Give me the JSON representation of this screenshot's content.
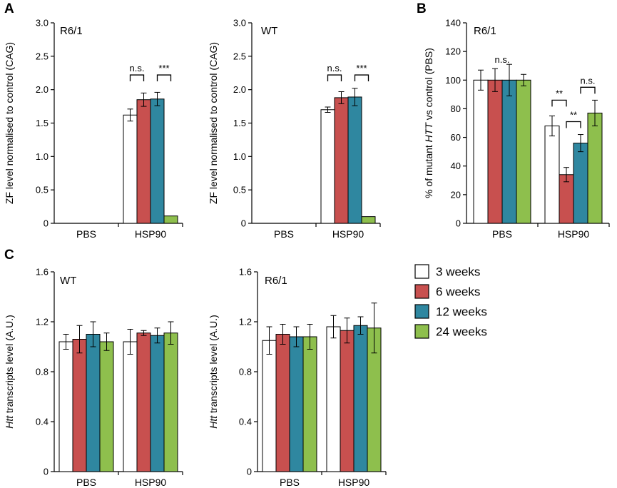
{
  "colors": {
    "3 weeks": "#ffffff",
    "6 weeks": "#c8504f",
    "12 weeks": "#2f87a0",
    "24 weeks": "#8ebf4d",
    "axis": "#000000"
  },
  "legend": {
    "entries": [
      "3 weeks",
      "6 weeks",
      "12 weeks",
      "24 weeks"
    ]
  },
  "chart_data": [
    {
      "id": "A1",
      "panel_label": "A",
      "type": "bar",
      "title": "R6/1",
      "ylabel": "ZF level normalised to control (CAG)",
      "ylim": [
        0,
        3.0
      ],
      "yticks": [
        "0",
        "0.5",
        "1.0",
        "1.5",
        "2.0",
        "2.5",
        "3.0"
      ],
      "categories": [
        "PBS",
        "HSP90"
      ],
      "series": [
        {
          "name": "3 weeks",
          "values": [
            0,
            1.62
          ],
          "errors": [
            0,
            0.09
          ]
        },
        {
          "name": "6 weeks",
          "values": [
            0,
            1.85
          ],
          "errors": [
            0,
            0.1
          ]
        },
        {
          "name": "12 weeks",
          "values": [
            0,
            1.86
          ],
          "errors": [
            0,
            0.1
          ]
        },
        {
          "name": "24 weeks",
          "values": [
            0,
            0.11
          ],
          "errors": [
            0,
            0
          ]
        }
      ],
      "annotations": [
        {
          "text": "n.s.",
          "cat": 1,
          "from": 0,
          "to": 1,
          "y": 2.22
        },
        {
          "text": "***",
          "cat": 1,
          "from": 2,
          "to": 3,
          "y": 2.22
        }
      ]
    },
    {
      "id": "A2",
      "type": "bar",
      "title": "WT",
      "ylabel": "ZF level normalised to control (CAG)",
      "ylim": [
        0,
        3.0
      ],
      "yticks": [
        "0",
        "0.5",
        "1.0",
        "1.5",
        "2.0",
        "2.5",
        "3.0"
      ],
      "categories": [
        "PBS",
        "HSP90"
      ],
      "series": [
        {
          "name": "3 weeks",
          "values": [
            0,
            1.7
          ],
          "errors": [
            0,
            0.04
          ]
        },
        {
          "name": "6 weeks",
          "values": [
            0,
            1.88
          ],
          "errors": [
            0,
            0.09
          ]
        },
        {
          "name": "12 weeks",
          "values": [
            0,
            1.89
          ],
          "errors": [
            0,
            0.13
          ]
        },
        {
          "name": "24 weeks",
          "values": [
            0,
            0.1
          ],
          "errors": [
            0,
            0
          ]
        }
      ],
      "annotations": [
        {
          "text": "n.s.",
          "cat": 1,
          "from": 0,
          "to": 1,
          "y": 2.22
        },
        {
          "text": "***",
          "cat": 1,
          "from": 2,
          "to": 3,
          "y": 2.22
        }
      ]
    },
    {
      "id": "B",
      "panel_label": "B",
      "type": "bar",
      "title": "R6/1",
      "ylabel": "% of mutant HTT vs control (PBS)",
      "ylabel_parts": [
        "% of mutant ",
        "HTT",
        " vs control (PBS)"
      ],
      "ylim": [
        0,
        140
      ],
      "yticks": [
        "0",
        "20",
        "40",
        "60",
        "80",
        "100",
        "120",
        "140"
      ],
      "categories": [
        "PBS",
        "HSP90"
      ],
      "series": [
        {
          "name": "3 weeks",
          "values": [
            100,
            68
          ],
          "errors": [
            7,
            7
          ]
        },
        {
          "name": "6 weeks",
          "values": [
            100,
            34
          ],
          "errors": [
            8,
            5
          ]
        },
        {
          "name": "12 weeks",
          "values": [
            100,
            56
          ],
          "errors": [
            11,
            6
          ]
        },
        {
          "name": "24 weeks",
          "values": [
            100,
            77
          ],
          "errors": [
            4,
            9
          ]
        }
      ],
      "annotations": [
        {
          "text": "n.s.",
          "cat": 0,
          "center": true,
          "y": 112
        },
        {
          "text": "**",
          "cat": 1,
          "from": 0,
          "to": 1,
          "y": 86
        },
        {
          "text": "**",
          "cat": 1,
          "from": 1,
          "to": 2,
          "y": 71
        },
        {
          "text": "n.s.",
          "cat": 1,
          "from": 2,
          "to": 3,
          "y": 95
        }
      ]
    },
    {
      "id": "C1",
      "panel_label": "C",
      "type": "bar",
      "title": "WT",
      "ylabel": "Htt transcripts level (A.U.)",
      "ylabel_parts": [
        "Htt",
        " transcripts level (A.U.)"
      ],
      "ylim": [
        0,
        1.6
      ],
      "yticks": [
        "0",
        "0.4",
        "0.8",
        "1.2",
        "1.6"
      ],
      "categories": [
        "PBS",
        "HSP90"
      ],
      "series": [
        {
          "name": "3 weeks",
          "values": [
            1.04,
            1.04
          ],
          "errors": [
            0.06,
            0.1
          ]
        },
        {
          "name": "6 weeks",
          "values": [
            1.06,
            1.11
          ],
          "errors": [
            0.11,
            0.02
          ]
        },
        {
          "name": "12 weeks",
          "values": [
            1.1,
            1.09
          ],
          "errors": [
            0.1,
            0.06
          ]
        },
        {
          "name": "24 weeks",
          "values": [
            1.04,
            1.11
          ],
          "errors": [
            0.07,
            0.09
          ]
        }
      ],
      "annotations": []
    },
    {
      "id": "C2",
      "type": "bar",
      "title": "R6/1",
      "ylabel": "Htt transcripts level (A.U.)",
      "ylabel_parts": [
        "Htt",
        " transcripts level (A.U.)"
      ],
      "ylim": [
        0,
        1.6
      ],
      "yticks": [
        "0",
        "0.4",
        "0.8",
        "1.2",
        "1.6"
      ],
      "categories": [
        "PBS",
        "HSP90"
      ],
      "series": [
        {
          "name": "3 weeks",
          "values": [
            1.05,
            1.16
          ],
          "errors": [
            0.11,
            0.09
          ]
        },
        {
          "name": "6 weeks",
          "values": [
            1.1,
            1.13
          ],
          "errors": [
            0.08,
            0.1
          ]
        },
        {
          "name": "12 weeks",
          "values": [
            1.08,
            1.17
          ],
          "errors": [
            0.08,
            0.07
          ]
        },
        {
          "name": "24 weeks",
          "values": [
            1.08,
            1.15
          ],
          "errors": [
            0.1,
            0.2
          ]
        }
      ],
      "annotations": []
    }
  ]
}
